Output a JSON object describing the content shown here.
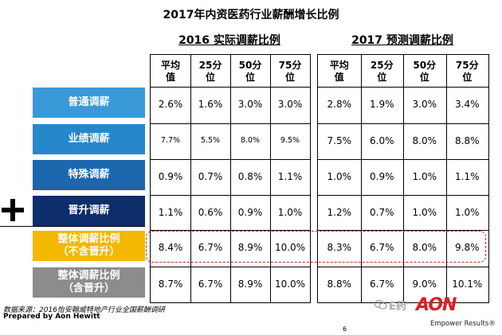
{
  "title": "2017年内资医药行业薪酬增长比例",
  "table_2016": {
    "heading": "2016 实际调薪比例",
    "columns": [
      "平均\n值",
      "25分\n位",
      "50分\n位",
      "75分\n位"
    ]
  },
  "table_2017": {
    "heading": "2017 预测调薪比例",
    "columns": [
      "平均\n值",
      "25分\n位",
      "50分\n位",
      "75分\n位"
    ]
  },
  "rows": [
    {
      "label": "普通调薪",
      "color": "#3a9ad9",
      "v2016": [
        "2.6%",
        "1.6%",
        "3.0%",
        "3.0%"
      ],
      "v2017": [
        "2.8%",
        "1.9%",
        "3.0%",
        "3.4%"
      ],
      "small2016": false
    },
    {
      "label": "业绩调薪",
      "color": "#2787cb",
      "v2016": [
        "7.7%",
        "5.5%",
        "8.0%",
        "9.5%"
      ],
      "v2017": [
        "7.5%",
        "6.0%",
        "8.0%",
        "8.8%"
      ],
      "small2016": true
    },
    {
      "label": "特殊调薪",
      "color": "#1c66ae",
      "v2016": [
        "0.9%",
        "0.7%",
        "0.8%",
        "1.1%"
      ],
      "v2017": [
        "1.0%",
        "0.9%",
        "1.0%",
        "1.1%"
      ],
      "small2016": false
    },
    {
      "label": "晋升调薪",
      "color": "#0d2d6b",
      "v2016": [
        "1.1%",
        "0.6%",
        "0.9%",
        "1.0%"
      ],
      "v2017": [
        "1.2%",
        "0.7%",
        "1.0%",
        "1.0%"
      ],
      "small2016": false
    },
    {
      "label": "整体调薪比例\n（不含晋升）",
      "color": "#f5b800",
      "v2016": [
        "8.4%",
        "6.7%",
        "8.9%",
        "10.0%"
      ],
      "v2017": [
        "8.3%",
        "6.7%",
        "8.0%",
        "9.8%"
      ],
      "small2016": false
    },
    {
      "label": "整体调薪比例\n（含晋升）",
      "color": "#8c8c8c",
      "v2016": [
        "8.7%",
        "6.7%",
        "8.9%",
        "10.0%"
      ],
      "v2017": [
        "8.8%",
        "6.7%",
        "9.0%",
        "10.1%"
      ],
      "small2016": false
    }
  ],
  "footer": {
    "source": "数据来源：2016怡安翰威特地产行业全国薪酬调研",
    "prepared": "Prepared by Aon Hewitt",
    "page": "6",
    "logo": "AON",
    "watermark": "E药",
    "tagline": "Empower Results®"
  },
  "colors": {
    "highlight": "#e11b22",
    "aon_red": "#e11b22"
  }
}
